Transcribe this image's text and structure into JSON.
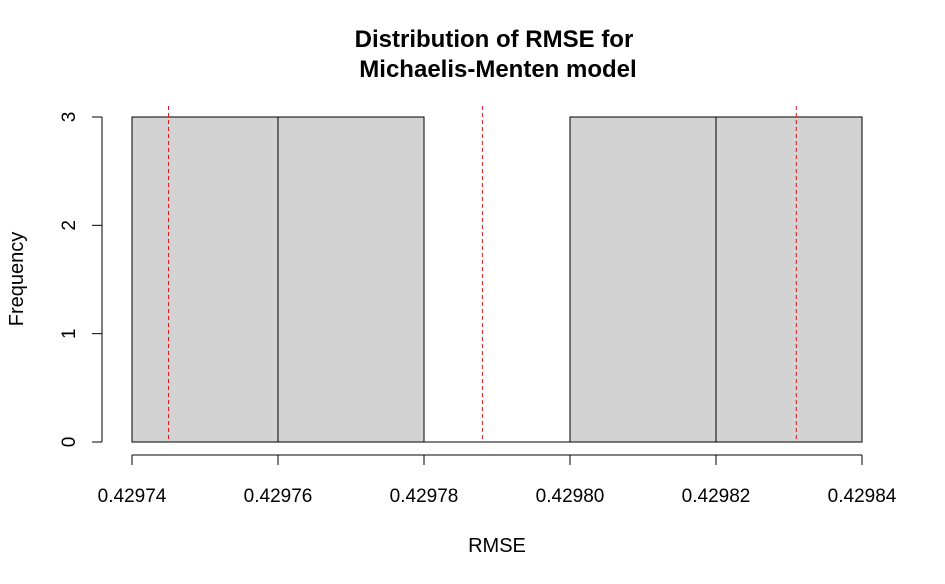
{
  "chart_data": {
    "type": "bar",
    "title_lines": [
      "Distribution of RMSE for",
      "Michaelis-Menten model"
    ],
    "xlabel": "RMSE",
    "ylabel": "Frequency",
    "bin_edges": [
      0.42974,
      0.42976,
      0.42978,
      0.4298,
      0.42982,
      0.42984
    ],
    "counts": [
      3,
      3,
      0,
      3,
      3
    ],
    "xlim": [
      0.42974,
      0.42984
    ],
    "ylim": [
      0,
      3
    ],
    "xticks": [
      0.42974,
      0.42976,
      0.42978,
      0.4298,
      0.42982,
      0.42984
    ],
    "xtick_labels": [
      "0.42974",
      "0.42976",
      "0.42978",
      "0.42980",
      "0.42982",
      "0.42984"
    ],
    "yticks": [
      0,
      1,
      2,
      3
    ],
    "ytick_labels": [
      "0",
      "1",
      "2",
      "3"
    ],
    "vlines": [
      0.429745,
      0.429788,
      0.429831
    ],
    "bar_fill": "#d3d3d3",
    "bar_stroke": "#000000",
    "vline_color": "#e41a1c",
    "grid": false,
    "legend": "none"
  }
}
